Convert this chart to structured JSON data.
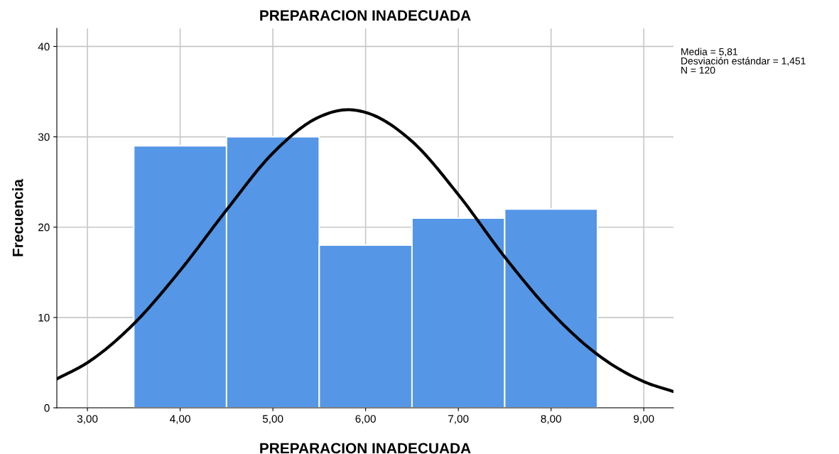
{
  "chart_data": {
    "type": "histogram",
    "title": "PREPARACION INADECUADA",
    "xlabel": "PREPARACION INADECUADA",
    "ylabel": "Frecuencia",
    "bins": [
      3.5,
      4.5,
      5.5,
      6.5,
      7.5,
      8.5
    ],
    "values": [
      29,
      30,
      18,
      21,
      22
    ],
    "color": "#5596e6",
    "series": [
      {
        "type": "line",
        "color": "#000000",
        "x": [
          2.67,
          3.0,
          3.5,
          4.0,
          4.5,
          5.0,
          5.5,
          5.81,
          6.0,
          6.5,
          7.0,
          7.5,
          8.0,
          8.5,
          9.0,
          9.32
        ],
        "values": [
          3.2,
          5.0,
          9.3,
          15.2,
          21.9,
          28.2,
          32.2,
          33.0,
          32.7,
          29.5,
          23.6,
          16.7,
          10.6,
          5.9,
          2.9,
          1.8
        ]
      }
    ],
    "xlim": [
      2.67,
      9.32
    ],
    "ylim": [
      0,
      42
    ],
    "xticks": [
      {
        "value": 3,
        "label": "3,00"
      },
      {
        "value": 4,
        "label": "4,00"
      },
      {
        "value": 5,
        "label": "5,00"
      },
      {
        "value": 6,
        "label": "6,00"
      },
      {
        "value": 7,
        "label": "7,00"
      },
      {
        "value": 8,
        "label": "8,00"
      },
      {
        "value": 9,
        "label": "9,00"
      }
    ],
    "yticks": [
      0,
      10,
      20,
      30,
      40
    ],
    "grid": true,
    "annotations": [
      "Media = 5,81",
      "Desviación estándar = 1,451",
      "N = 120"
    ]
  }
}
